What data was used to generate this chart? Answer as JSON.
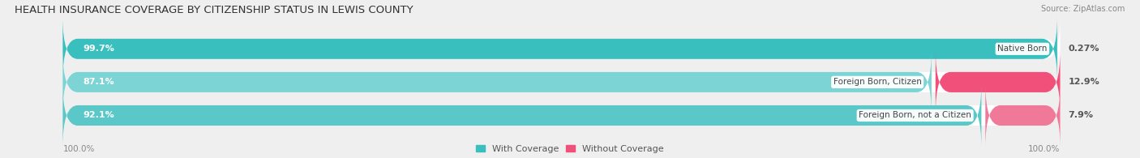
{
  "title": "HEALTH INSURANCE COVERAGE BY CITIZENSHIP STATUS IN LEWIS COUNTY",
  "source": "Source: ZipAtlas.com",
  "categories": [
    "Native Born",
    "Foreign Born, Citizen",
    "Foreign Born, not a Citizen"
  ],
  "with_coverage": [
    99.7,
    87.1,
    92.1
  ],
  "without_coverage": [
    0.27,
    12.9,
    7.9
  ],
  "color_with": [
    "#3abfbf",
    "#7dd4d4",
    "#5ac8c8"
  ],
  "color_without": [
    "#f8b4c8",
    "#f0507a",
    "#f07898"
  ],
  "background_color": "#efefef",
  "bar_background": "#ffffff",
  "title_fontsize": 9.5,
  "source_fontsize": 7,
  "tick_fontsize": 7.5,
  "legend_fontsize": 8,
  "left_pct_label": "100.0%",
  "right_pct_label": "100.0%"
}
